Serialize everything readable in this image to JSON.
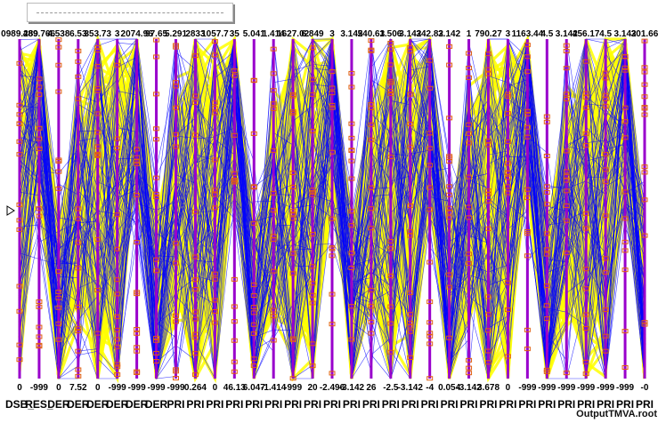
{
  "chart_data": {
    "type": "parallel-coordinates",
    "title": "",
    "axes": [
      {
        "top": "0989.289",
        "bottom": "0",
        "label": "DSB_"
      },
      {
        "top": "489.766",
        "bottom": "-999",
        "label": "RES_"
      },
      {
        "top": "4.538",
        "bottom": "0",
        "label": "DER"
      },
      {
        "top": "6.53",
        "bottom": "7.52",
        "label": "DER"
      },
      {
        "top": "353.73",
        "bottom": "0",
        "label": "DER"
      },
      {
        "top": "3",
        "bottom": "-999",
        "label": "DER"
      },
      {
        "top": "2074.96",
        "bottom": "-999",
        "label": "DER"
      },
      {
        "top": "97.65",
        "bottom": "-999",
        "label": "DER"
      },
      {
        "top": "5.291",
        "bottom": "-999",
        "label": "PRI"
      },
      {
        "top": "2833",
        "bottom": "0.264",
        "label": "PRI"
      },
      {
        "top": "1057.7",
        "bottom": "0",
        "label": "PRI"
      },
      {
        "top": "35",
        "bottom": "46.13",
        "label": "PRI"
      },
      {
        "top": "5.041",
        "bottom": "6.047",
        "label": "PRI"
      },
      {
        "top": "1.414",
        "bottom": "-1.414",
        "label": "PRI"
      },
      {
        "top": "1627.02",
        "bottom": "-999",
        "label": "PRI"
      },
      {
        "top": "6.849",
        "bottom": "20",
        "label": "PRI"
      },
      {
        "top": "3",
        "bottom": "-2.496",
        "label": "PRI"
      },
      {
        "top": "3.142",
        "bottom": "-3.142",
        "label": "PRI"
      },
      {
        "top": "540.63",
        "bottom": "26",
        "label": "PRI"
      },
      {
        "top": "1.506",
        "bottom": "-2.5",
        "label": "PRI"
      },
      {
        "top": "3.142",
        "bottom": "-3.142",
        "label": "PRI"
      },
      {
        "top": "342.82",
        "bottom": "-4",
        "label": "PRI"
      },
      {
        "top": "3.142",
        "bottom": "0.054",
        "label": "PRI"
      },
      {
        "top": "1",
        "bottom": "-3.142",
        "label": "PRI"
      },
      {
        "top": "790.27",
        "bottom": "3.678",
        "label": "PRI"
      },
      {
        "top": "3",
        "bottom": "0",
        "label": "PRI"
      },
      {
        "top": "1163.44",
        "bottom": "-999",
        "label": "PRI"
      },
      {
        "top": "4.5",
        "bottom": "-999",
        "label": "PRI"
      },
      {
        "top": "3.142",
        "bottom": "-999",
        "label": "PRI"
      },
      {
        "top": "456.17",
        "bottom": "-999",
        "label": "PRI"
      },
      {
        "top": "4.5",
        "bottom": "-999",
        "label": "PRI"
      },
      {
        "top": "3.142",
        "bottom": "-999",
        "label": "PRI"
      },
      {
        "top": "301.66",
        "bottom": "-0",
        "label": "PRI"
      }
    ],
    "colors": {
      "signal": "#ffff00",
      "background": "#0000ff",
      "axis": "#9900cc",
      "marker": "#e06010"
    },
    "legend": "top-left"
  },
  "footer": "OutputTMVA.root"
}
